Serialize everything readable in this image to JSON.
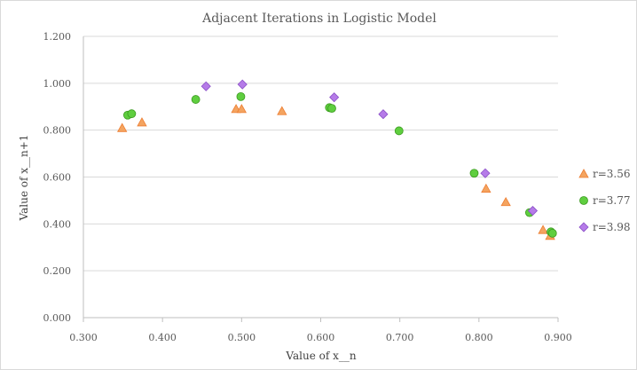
{
  "chart_data": {
    "type": "scatter",
    "title": "Adjacent Iterations  in  Logistic Model",
    "xlabel": "Value of x__n",
    "ylabel": "Value of x__n+1",
    "xlim": [
      0.3,
      0.9
    ],
    "ylim": [
      0.0,
      1.2
    ],
    "x_ticks": [
      "0.300",
      "0.400",
      "0.500",
      "0.600",
      "0.700",
      "0.800",
      "0.900"
    ],
    "y_ticks": [
      "0.000",
      "0.200",
      "0.400",
      "0.600",
      "0.800",
      "1.000",
      "1.200"
    ],
    "grid": "horizontal",
    "legend_position": "right",
    "series": [
      {
        "name": "r=3.56",
        "marker": "triangle",
        "color": "#f4a460",
        "border": "#ed7d31",
        "points": [
          [
            0.349,
            0.809
          ],
          [
            0.374,
            0.833
          ],
          [
            0.493,
            0.89
          ],
          [
            0.5,
            0.89
          ],
          [
            0.551,
            0.881
          ],
          [
            0.809,
            0.55
          ],
          [
            0.834,
            0.493
          ],
          [
            0.881,
            0.374
          ],
          [
            0.89,
            0.349
          ]
        ]
      },
      {
        "name": "r=3.77",
        "marker": "circle",
        "color": "#5fce3f",
        "border": "#3a9a1e",
        "points": [
          [
            0.356,
            0.864
          ],
          [
            0.361,
            0.87
          ],
          [
            0.442,
            0.931
          ],
          [
            0.499,
            0.943
          ],
          [
            0.611,
            0.896
          ],
          [
            0.614,
            0.893
          ],
          [
            0.699,
            0.797
          ],
          [
            0.794,
            0.616
          ],
          [
            0.864,
            0.448
          ],
          [
            0.891,
            0.366
          ],
          [
            0.893,
            0.36
          ]
        ]
      },
      {
        "name": "r=3.98",
        "marker": "diamond",
        "color": "#b57be8",
        "border": "#8a4fc7",
        "points": [
          [
            0.455,
            0.987
          ],
          [
            0.501,
            0.995
          ],
          [
            0.617,
            0.94
          ],
          [
            0.679,
            0.868
          ],
          [
            0.808,
            0.616
          ],
          [
            0.868,
            0.456
          ]
        ]
      }
    ]
  }
}
